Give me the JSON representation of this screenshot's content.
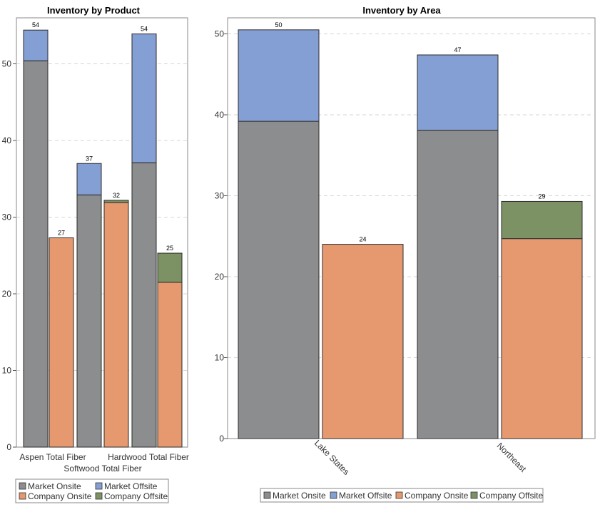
{
  "colors": {
    "market_onsite": "#8c8d8f",
    "market_offsite": "#849fd4",
    "company_onsite": "#e6996f",
    "company_offsite": "#7d9264"
  },
  "legend": {
    "market_onsite": "Market Onsite",
    "market_offsite": "Market Offsite",
    "company_onsite": "Company Onsite",
    "company_offsite": "Company Offsite"
  },
  "chart_data": [
    {
      "type": "bar",
      "stacked": true,
      "title": "Inventory by Product",
      "xlabel": "",
      "ylabel": "",
      "ylim": [
        0,
        55
      ],
      "yticks": [
        "0",
        "10",
        "20",
        "30",
        "40",
        "50"
      ],
      "grid": true,
      "legend_position": "bottom",
      "categories": [
        "Aspen Total Fiber",
        "Softwood Total Fiber",
        "Hardwood Total Fiber"
      ],
      "bars": [
        {
          "category": "Aspen Total Fiber",
          "group": "Market",
          "segments": [
            {
              "series": "Market Onsite",
              "value": 50.4
            },
            {
              "series": "Market Offsite",
              "value": 4.0
            }
          ],
          "total_label": "54"
        },
        {
          "category": "Aspen Total Fiber",
          "group": "Company",
          "segments": [
            {
              "series": "Company Onsite",
              "value": 27.3
            }
          ],
          "total_label": "27"
        },
        {
          "category": "Softwood Total Fiber",
          "group": "Market",
          "segments": [
            {
              "series": "Market Onsite",
              "value": 32.9
            },
            {
              "series": "Market Offsite",
              "value": 4.1
            }
          ],
          "total_label": "37"
        },
        {
          "category": "Softwood Total Fiber",
          "group": "Company",
          "segments": [
            {
              "series": "Company Onsite",
              "value": 31.9
            },
            {
              "series": "Company Offsite",
              "value": 0.3
            }
          ],
          "total_label": "32"
        },
        {
          "category": "Hardwood Total Fiber",
          "group": "Market",
          "segments": [
            {
              "series": "Market Onsite",
              "value": 37.1
            },
            {
              "series": "Market Offsite",
              "value": 16.8
            }
          ],
          "total_label": "54"
        },
        {
          "category": "Hardwood Total Fiber",
          "group": "Company",
          "segments": [
            {
              "series": "Company Onsite",
              "value": 21.5
            },
            {
              "series": "Company Offsite",
              "value": 3.8
            }
          ],
          "total_label": "25"
        }
      ]
    },
    {
      "type": "bar",
      "stacked": true,
      "title": "Inventory by Area",
      "xlabel": "",
      "ylabel": "",
      "ylim": [
        0,
        53
      ],
      "yticks": [
        "0",
        "10",
        "20",
        "30",
        "40",
        "50"
      ],
      "grid": true,
      "legend_position": "bottom",
      "categories": [
        "Lake States",
        "Northeast"
      ],
      "bars": [
        {
          "category": "Lake States",
          "group": "Market",
          "segments": [
            {
              "series": "Market Onsite",
              "value": 39.2
            },
            {
              "series": "Market Offsite",
              "value": 11.3
            }
          ],
          "total_label": "50"
        },
        {
          "category": "Lake States",
          "group": "Company",
          "segments": [
            {
              "series": "Company Onsite",
              "value": 24.0
            }
          ],
          "total_label": "24"
        },
        {
          "category": "Northeast",
          "group": "Market",
          "segments": [
            {
              "series": "Market Onsite",
              "value": 38.1
            },
            {
              "series": "Market Offsite",
              "value": 9.3
            }
          ],
          "total_label": "47"
        },
        {
          "category": "Northeast",
          "group": "Company",
          "segments": [
            {
              "series": "Company Onsite",
              "value": 24.7
            },
            {
              "series": "Company Offsite",
              "value": 4.6
            }
          ],
          "total_label": "29"
        }
      ]
    }
  ]
}
